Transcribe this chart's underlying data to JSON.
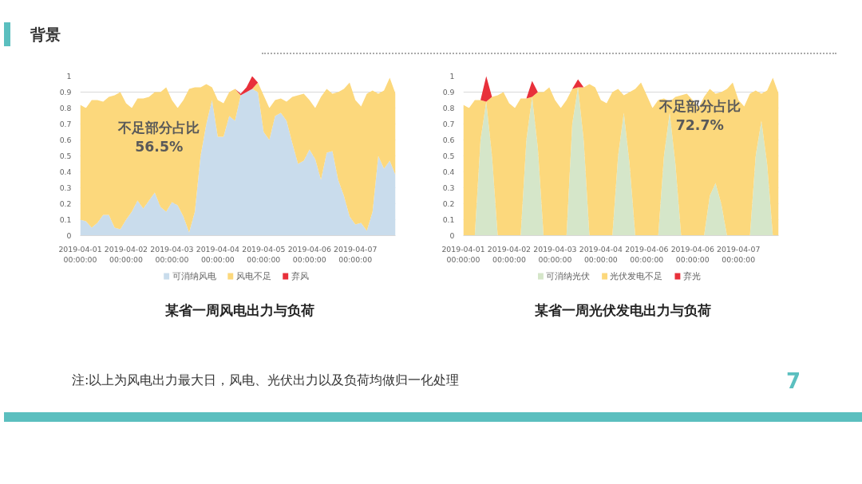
{
  "chart_data": [
    {
      "type": "area",
      "title": "某省一周风电出力与负荷",
      "stacked": true,
      "ylim": [
        0,
        1
      ],
      "yticks": [
        0,
        0.1,
        0.2,
        0.3,
        0.4,
        0.5,
        0.6,
        0.7,
        0.8,
        0.9,
        1
      ],
      "grid": "y",
      "legend": "bottom",
      "categories": [
        "2019-04-01 00:00:00",
        null,
        null,
        null,
        null,
        null,
        null,
        null,
        "2019-04-02 00:00:00",
        null,
        null,
        null,
        null,
        null,
        null,
        null,
        "2019-04-03 00:00:00",
        null,
        null,
        null,
        null,
        null,
        null,
        null,
        "2019-04-04 00:00:00",
        null,
        null,
        null,
        null,
        null,
        null,
        null,
        "2019-04-05 00:00:00",
        null,
        null,
        null,
        null,
        null,
        null,
        null,
        "2019-04-06 00:00:00",
        null,
        null,
        null,
        null,
        null,
        null,
        null,
        "2019-04-07 00:00:00",
        null,
        null,
        null,
        null,
        null,
        null,
        null
      ],
      "series": [
        {
          "name": "可消纳风电",
          "color": "#c9dcec",
          "values": [
            0.1,
            0.09,
            0.05,
            0.08,
            0.13,
            0.13,
            0.05,
            0.04,
            0.1,
            0.15,
            0.22,
            0.17,
            0.22,
            0.27,
            0.18,
            0.15,
            0.21,
            0.19,
            0.12,
            0.02,
            0.15,
            0.5,
            0.7,
            0.85,
            0.62,
            0.62,
            0.75,
            0.72,
            0.88,
            0.9,
            0.92,
            0.9,
            0.65,
            0.6,
            0.75,
            0.77,
            0.72,
            0.58,
            0.45,
            0.47,
            0.54,
            0.48,
            0.35,
            0.52,
            0.53,
            0.35,
            0.25,
            0.12,
            0.07,
            0.08,
            0.03,
            0.15,
            0.5,
            0.42,
            0.47,
            0.38
          ]
        },
        {
          "name": "风电不足",
          "color": "#fcd87c",
          "values": [
            0.72,
            0.71,
            0.8,
            0.77,
            0.71,
            0.74,
            0.83,
            0.86,
            0.73,
            0.65,
            0.64,
            0.69,
            0.65,
            0.63,
            0.72,
            0.78,
            0.64,
            0.61,
            0.73,
            0.9,
            0.78,
            0.43,
            0.25,
            0.08,
            0.23,
            0.21,
            0.15,
            0.2,
            0,
            0,
            0,
            0.06,
            0.23,
            0.2,
            0.1,
            0.09,
            0.12,
            0.29,
            0.43,
            0.42,
            0.31,
            0.32,
            0.52,
            0.4,
            0.36,
            0.55,
            0.67,
            0.84,
            0.78,
            0.73,
            0.86,
            0.76,
            0.39,
            0.49,
            0.52,
            0.51
          ]
        },
        {
          "name": "弃风",
          "color": "#e8303a",
          "values": [
            0,
            0,
            0,
            0,
            0,
            0,
            0,
            0,
            0,
            0,
            0,
            0,
            0,
            0,
            0,
            0,
            0,
            0,
            0,
            0,
            0,
            0,
            0,
            0,
            0,
            0,
            0,
            0,
            0.01,
            0.03,
            0.08,
            0,
            0,
            0,
            0,
            0,
            0,
            0,
            0,
            0,
            0,
            0,
            0,
            0,
            0,
            0,
            0,
            0,
            0,
            0,
            0,
            0,
            0,
            0,
            0,
            0
          ]
        }
      ],
      "annotations": [
        "不足部分占比\n56.5%"
      ]
    },
    {
      "type": "area",
      "title": "某省一周光伏发电出力与负荷",
      "stacked": true,
      "ylim": [
        0,
        1
      ],
      "yticks": [
        0,
        0.1,
        0.2,
        0.3,
        0.4,
        0.5,
        0.6,
        0.7,
        0.8,
        0.9,
        1
      ],
      "grid": "y",
      "legend": "bottom",
      "categories": [
        "2019-04-01 00:00:00",
        null,
        null,
        null,
        null,
        null,
        null,
        null,
        "2019-04-02 00:00:00",
        null,
        null,
        null,
        null,
        null,
        null,
        null,
        "2019-04-03 00:00:00",
        null,
        null,
        null,
        null,
        null,
        null,
        null,
        "2019-04-04 00:00:00",
        null,
        null,
        null,
        null,
        null,
        null,
        null,
        "2019-04-06 00:00:00",
        null,
        null,
        null,
        null,
        null,
        null,
        null,
        "2019-04-06 00:00:00",
        null,
        null,
        null,
        null,
        null,
        null,
        null,
        "2019-04-07 00:00:00",
        null,
        null,
        null,
        null,
        null,
        null,
        null
      ],
      "series": [
        {
          "name": "可消纳光伏",
          "color": "#d5e6c9",
          "values": [
            0,
            0,
            0,
            0.6,
            0.84,
            0.5,
            0,
            0,
            0,
            0,
            0,
            0.6,
            0.87,
            0.55,
            0,
            0,
            0,
            0,
            0,
            0.7,
            0.93,
            0.6,
            0,
            0,
            0,
            0,
            0,
            0.5,
            0.77,
            0.45,
            0,
            0,
            0,
            0,
            0,
            0.5,
            0.77,
            0.45,
            0,
            0,
            0,
            0,
            0,
            0.25,
            0.33,
            0.2,
            0,
            0,
            0,
            0,
            0,
            0.5,
            0.72,
            0.45,
            0,
            0
          ]
        },
        {
          "name": "光伏发电不足",
          "color": "#fcd87c",
          "values": [
            0.82,
            0.8,
            0.85,
            0.25,
            0,
            0.37,
            0.88,
            0.9,
            0.83,
            0.8,
            0.86,
            0.26,
            0,
            0.35,
            0.9,
            0.93,
            0.85,
            0.8,
            0.85,
            0.22,
            0,
            0.33,
            0.95,
            0.93,
            0.85,
            0.83,
            0.9,
            0.42,
            0.11,
            0.45,
            0.92,
            0.96,
            0.88,
            0.8,
            0.85,
            0.36,
            0.07,
            0.42,
            0.88,
            0.89,
            0.85,
            0.8,
            0.87,
            0.67,
            0.56,
            0.7,
            0.92,
            0.96,
            0.85,
            0.81,
            0.89,
            0.41,
            0.17,
            0.46,
            0.99,
            0.89
          ]
        },
        {
          "name": "弃光",
          "color": "#e8303a",
          "values": [
            0,
            0,
            0,
            0,
            0.16,
            0,
            0,
            0,
            0,
            0,
            0,
            0,
            0.1,
            0,
            0,
            0,
            0,
            0,
            0,
            0,
            0.05,
            0,
            0,
            0,
            0,
            0,
            0,
            0,
            0,
            0,
            0,
            0,
            0,
            0,
            0,
            0,
            0,
            0,
            0,
            0,
            0,
            0,
            0,
            0,
            0,
            0,
            0,
            0,
            0,
            0,
            0,
            0,
            0,
            0,
            0,
            0
          ]
        }
      ],
      "annotations": [
        "不足部分占比\n72.7%"
      ]
    },
    {
      "type": "other",
      "title": "背景",
      "annotations": [
        "注:以上为风电出力最大日，风电、光伏出力以及负荷均做归一化处理",
        "7"
      ]
    }
  ]
}
